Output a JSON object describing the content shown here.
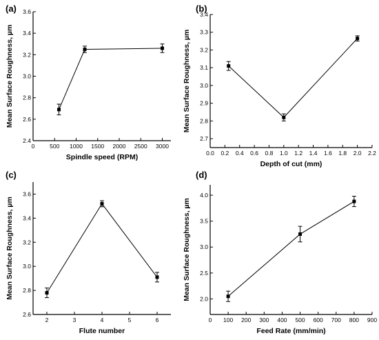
{
  "chart_data": [
    {
      "type": "line",
      "panel_label": "(a)",
      "xlabel": "Spindle speed (RPM)",
      "ylabel": "Mean Surface Roughness, µm",
      "xlim": [
        0,
        3200
      ],
      "ylim": [
        2.4,
        3.6
      ],
      "xticks": [
        0,
        500,
        1000,
        1500,
        2000,
        2500,
        3000
      ],
      "yticks": [
        2.4,
        2.6,
        2.8,
        3.0,
        3.2,
        3.4,
        3.6
      ],
      "xtick_labels": [
        "0",
        "500",
        "1000",
        "1500",
        "2000",
        "2500",
        "3000"
      ],
      "ytick_labels": [
        "2.4",
        "2.6",
        "2.8",
        "3.0",
        "3.2",
        "3.4",
        "3.6"
      ],
      "x": [
        600,
        1200,
        3000
      ],
      "y": [
        2.69,
        3.25,
        3.26
      ],
      "err": [
        0.05,
        0.03,
        0.04
      ],
      "grid": false
    },
    {
      "type": "line",
      "panel_label": "(b)",
      "xlabel": "Depth of cut (mm)",
      "ylabel": "Mean Surface Roughness, µm",
      "xlim": [
        0.0,
        2.2
      ],
      "ylim": [
        2.65,
        3.4
      ],
      "xticks": [
        0.0,
        0.2,
        0.4,
        0.6,
        0.8,
        1.0,
        1.2,
        1.4,
        1.6,
        1.8,
        2.0,
        2.2
      ],
      "yticks": [
        2.7,
        2.8,
        2.9,
        3.0,
        3.1,
        3.2,
        3.3,
        3.4
      ],
      "xtick_labels": [
        "0.0",
        "0.2",
        "0.4",
        "0.6",
        "0.8",
        "1.0",
        "1.2",
        "1.4",
        "1.6",
        "1.8",
        "2.0",
        "2.2"
      ],
      "ytick_labels": [
        "2.7",
        "2.8",
        "2.9",
        "3.0",
        "3.1",
        "3.2",
        "3.3",
        "3.4"
      ],
      "x": [
        0.25,
        1.0,
        2.0
      ],
      "y": [
        3.11,
        2.82,
        3.265
      ],
      "err": [
        0.025,
        0.02,
        0.015
      ],
      "grid": false
    },
    {
      "type": "line",
      "panel_label": "(c)",
      "xlabel": "Flute number",
      "ylabel": "Mean Surface Roughness, µm",
      "xlim": [
        1.5,
        6.5
      ],
      "ylim": [
        2.6,
        3.7
      ],
      "xticks": [
        2,
        3,
        4,
        5,
        6
      ],
      "yticks": [
        2.6,
        2.8,
        3.0,
        3.2,
        3.4,
        3.6
      ],
      "xtick_labels": [
        "2",
        "3",
        "4",
        "5",
        "6"
      ],
      "ytick_labels": [
        "2.6",
        "2.8",
        "3.0",
        "3.2",
        "3.4",
        "3.6"
      ],
      "x": [
        2,
        4,
        6
      ],
      "y": [
        2.78,
        3.52,
        2.91
      ],
      "err": [
        0.04,
        0.025,
        0.04
      ],
      "grid": false
    },
    {
      "type": "line",
      "panel_label": "(d)",
      "xlabel": "Feed Rate (mm/min)",
      "ylabel": "Mean Surface Roughness, µm",
      "xlim": [
        0,
        900
      ],
      "ylim": [
        1.7,
        4.2
      ],
      "xticks": [
        0,
        100,
        200,
        300,
        400,
        500,
        600,
        700,
        800,
        900
      ],
      "yticks": [
        2.0,
        2.5,
        3.0,
        3.5,
        4.0
      ],
      "xtick_labels": [
        "0",
        "100",
        "200",
        "300",
        "400",
        "500",
        "600",
        "700",
        "800",
        "900"
      ],
      "ytick_labels": [
        "2.0",
        "2.5",
        "3.0",
        "3.5",
        "4.0"
      ],
      "x": [
        100,
        500,
        800
      ],
      "y": [
        2.05,
        3.25,
        3.88
      ],
      "err": [
        0.1,
        0.15,
        0.1
      ],
      "grid": false
    }
  ]
}
